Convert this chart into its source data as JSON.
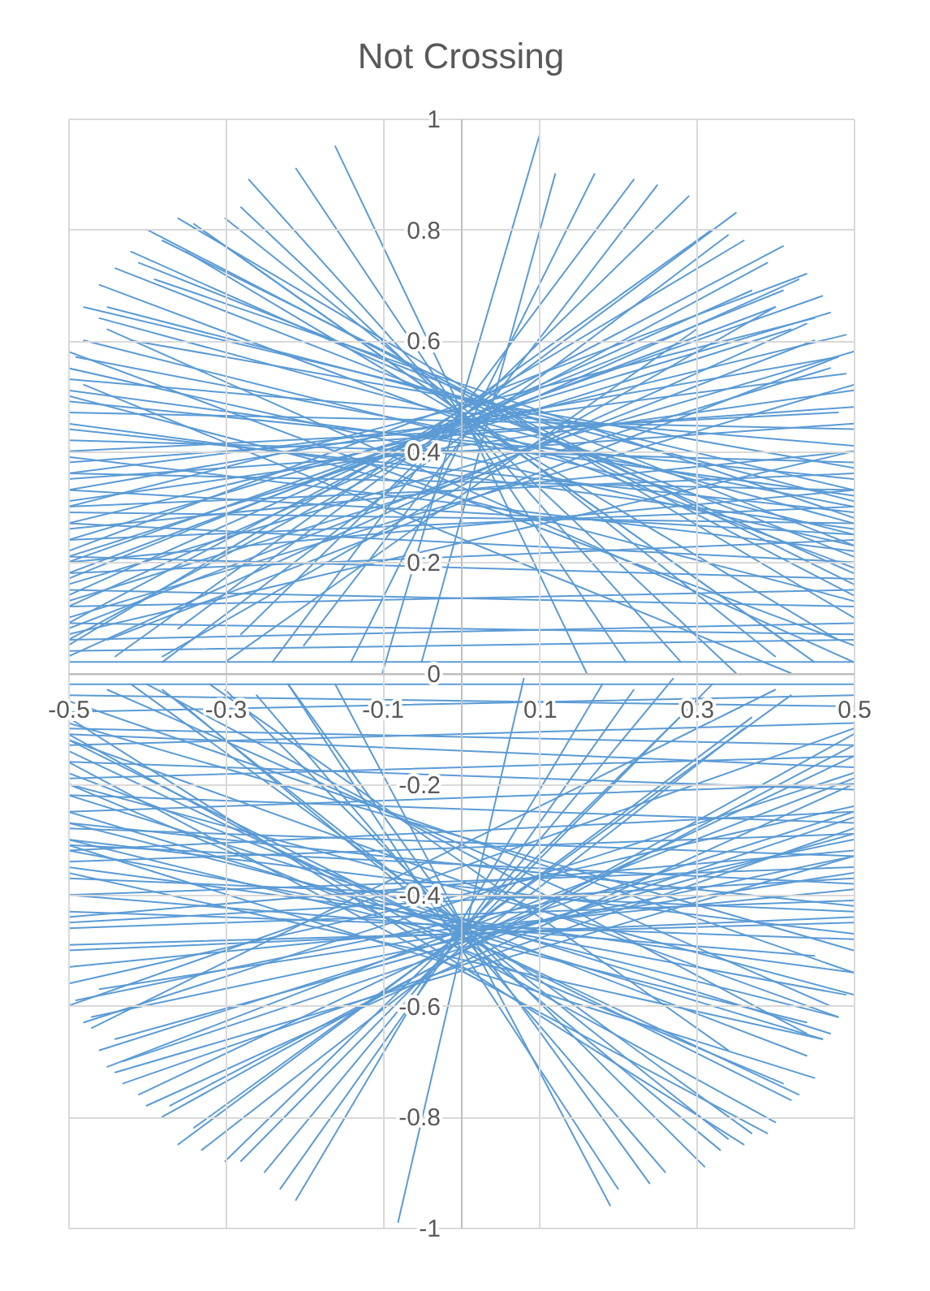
{
  "chart_data": {
    "type": "line",
    "title": "Not Crossing",
    "series": [
      {
        "color": "#5b9bd5",
        "x": [
          -0.16,
          0.16
        ],
        "values": [
          0.95,
          0
        ]
      },
      {
        "color": "#5b9bd5",
        "x": [
          -0.21,
          0.21
        ],
        "values": [
          0.91,
          0.02
        ]
      },
      {
        "color": "#5b9bd5",
        "x": [
          -0.27,
          0.28
        ],
        "values": [
          0.89,
          0.02
        ]
      },
      {
        "color": "#5b9bd5",
        "x": [
          -0.28,
          0.35
        ],
        "values": [
          0.84,
          0
        ]
      },
      {
        "color": "#5b9bd5",
        "x": [
          -0.34,
          0.42
        ],
        "values": [
          0.81,
          0.05
        ]
      },
      {
        "color": "#5b9bd5",
        "x": [
          -0.36,
          0.5
        ],
        "values": [
          0.82,
          0.1
        ]
      },
      {
        "color": "#5b9bd5",
        "x": [
          -0.4,
          0.5
        ],
        "values": [
          0.8,
          0.14
        ]
      },
      {
        "color": "#5b9bd5",
        "x": [
          -0.42,
          0.5
        ],
        "values": [
          0.76,
          0.18
        ]
      },
      {
        "color": "#5b9bd5",
        "x": [
          -0.44,
          0.5
        ],
        "values": [
          0.73,
          0.21
        ]
      },
      {
        "color": "#5b9bd5",
        "x": [
          -0.46,
          0.5
        ],
        "values": [
          0.7,
          0.19
        ]
      },
      {
        "color": "#5b9bd5",
        "x": [
          -0.46,
          0.5
        ],
        "values": [
          0.64,
          0.27
        ]
      },
      {
        "color": "#5b9bd5",
        "x": [
          -0.49,
          0.5
        ],
        "values": [
          0.57,
          0.3
        ]
      },
      {
        "color": "#5b9bd5",
        "x": [
          0.1,
          -0.1
        ],
        "values": [
          0.97,
          0
        ]
      },
      {
        "color": "#5b9bd5",
        "x": [
          0.17,
          -0.14
        ],
        "values": [
          0.9,
          0.02
        ]
      },
      {
        "color": "#5b9bd5",
        "x": [
          0.22,
          -0.24
        ],
        "values": [
          0.89,
          0.02
        ]
      },
      {
        "color": "#5b9bd5",
        "x": [
          0.25,
          -0.2
        ],
        "values": [
          0.88,
          0.05
        ]
      },
      {
        "color": "#5b9bd5",
        "x": [
          0.29,
          -0.28
        ],
        "values": [
          0.86,
          0.07
        ]
      },
      {
        "color": "#5b9bd5",
        "x": [
          0.35,
          -0.36
        ],
        "values": [
          0.83,
          0.08
        ]
      },
      {
        "color": "#5b9bd5",
        "x": [
          0.34,
          -0.38
        ],
        "values": [
          0.79,
          0.02
        ]
      },
      {
        "color": "#5b9bd5",
        "x": [
          0.36,
          -0.5
        ],
        "values": [
          0.78,
          0.05
        ]
      },
      {
        "color": "#5b9bd5",
        "x": [
          0.41,
          -0.5
        ],
        "values": [
          0.77,
          0.09
        ]
      },
      {
        "color": "#5b9bd5",
        "x": [
          0.37,
          -0.5
        ],
        "values": [
          0.69,
          0.14
        ]
      },
      {
        "color": "#5b9bd5",
        "x": [
          0.41,
          -0.5
        ],
        "values": [
          0.69,
          0.17
        ]
      },
      {
        "color": "#5b9bd5",
        "x": [
          0.46,
          -0.5
        ],
        "values": [
          0.68,
          0.2
        ]
      },
      {
        "color": "#5b9bd5",
        "x": [
          0.47,
          -0.5
        ],
        "values": [
          0.65,
          0.24
        ]
      },
      {
        "color": "#5b9bd5",
        "x": [
          0.49,
          -0.5
        ],
        "values": [
          0.61,
          0.27
        ]
      },
      {
        "color": "#5b9bd5",
        "x": [
          0.5,
          -0.5
        ],
        "values": [
          0.51,
          0.31
        ]
      },
      {
        "color": "#5b9bd5",
        "x": [
          0.48,
          -0.5
        ],
        "values": [
          0.47,
          0.4
        ]
      },
      {
        "color": "#5b9bd5",
        "x": [
          -0.5,
          0.5
        ],
        "values": [
          0.53,
          0.41
        ]
      },
      {
        "color": "#5b9bd5",
        "x": [
          -0.5,
          0.5
        ],
        "values": [
          0.49,
          0.35
        ]
      },
      {
        "color": "#5b9bd5",
        "x": [
          -0.5,
          0.5
        ],
        "values": [
          0.47,
          0.44
        ]
      },
      {
        "color": "#5b9bd5",
        "x": [
          -0.5,
          0.5
        ],
        "values": [
          0.44,
          0.29
        ]
      },
      {
        "color": "#5b9bd5",
        "x": [
          -0.5,
          0.5
        ],
        "values": [
          0.42,
          0.38
        ]
      },
      {
        "color": "#5b9bd5",
        "x": [
          -0.5,
          0.5
        ],
        "values": [
          0.39,
          0.22
        ]
      },
      {
        "color": "#5b9bd5",
        "x": [
          -0.5,
          0.5
        ],
        "values": [
          0.36,
          0.33
        ]
      },
      {
        "color": "#5b9bd5",
        "x": [
          -0.5,
          0.5
        ],
        "values": [
          0.33,
          0.25
        ]
      },
      {
        "color": "#5b9bd5",
        "x": [
          -0.5,
          0.5
        ],
        "values": [
          0.3,
          0.36
        ]
      },
      {
        "color": "#5b9bd5",
        "x": [
          -0.5,
          0.5
        ],
        "values": [
          0.27,
          0.2
        ]
      },
      {
        "color": "#5b9bd5",
        "x": [
          -0.5,
          0.5
        ],
        "values": [
          0.24,
          0.3
        ]
      },
      {
        "color": "#5b9bd5",
        "x": [
          -0.5,
          0.5
        ],
        "values": [
          0.21,
          0.17
        ]
      },
      {
        "color": "#5b9bd5",
        "x": [
          -0.5,
          0.5
        ],
        "values": [
          0.18,
          0.24
        ]
      },
      {
        "color": "#5b9bd5",
        "x": [
          -0.5,
          0.5
        ],
        "values": [
          0.15,
          0.12
        ]
      },
      {
        "color": "#5b9bd5",
        "x": [
          -0.5,
          0.5
        ],
        "values": [
          0.12,
          0.15
        ]
      },
      {
        "color": "#5b9bd5",
        "x": [
          -0.5,
          0.5
        ],
        "values": [
          0.09,
          0.07
        ]
      },
      {
        "color": "#5b9bd5",
        "x": [
          -0.5,
          0.5
        ],
        "values": [
          0.06,
          0.09
        ]
      },
      {
        "color": "#5b9bd5",
        "x": [
          -0.5,
          0.5
        ],
        "values": [
          0.04,
          0.06
        ]
      },
      {
        "color": "#5b9bd5",
        "x": [
          -0.5,
          0.5
        ],
        "values": [
          0.02,
          0.02
        ]
      },
      {
        "color": "#5b9bd5",
        "x": [
          -0.5,
          0.44
        ],
        "values": [
          0.03,
          0.63
        ]
      },
      {
        "color": "#5b9bd5",
        "x": [
          -0.45,
          0.48
        ],
        "values": [
          0.06,
          0.57
        ]
      },
      {
        "color": "#5b9bd5",
        "x": [
          -0.38,
          0.4
        ],
        "values": [
          0.03,
          0.66
        ]
      },
      {
        "color": "#5b9bd5",
        "x": [
          -0.5,
          0.5
        ],
        "values": [
          0.1,
          0.52
        ]
      },
      {
        "color": "#5b9bd5",
        "x": [
          -0.5,
          0.5
        ],
        "values": [
          0.16,
          0.58
        ]
      },
      {
        "color": "#5b9bd5",
        "x": [
          -0.5,
          0.45
        ],
        "values": [
          0.08,
          0.6
        ]
      },
      {
        "color": "#5b9bd5",
        "x": [
          -0.3,
          0.3
        ],
        "values": [
          0.02,
          0.62
        ]
      },
      {
        "color": "#5b9bd5",
        "x": [
          -0.5,
          0.5
        ],
        "values": [
          0.58,
          0.05
        ]
      },
      {
        "color": "#5b9bd5",
        "x": [
          -0.48,
          0.42
        ],
        "values": [
          0.52,
          0
        ]
      },
      {
        "color": "#5b9bd5",
        "x": [
          -0.5,
          0.5
        ],
        "values": [
          0.5,
          0.13
        ]
      },
      {
        "color": "#5b9bd5",
        "x": [
          -0.45,
          0.5
        ],
        "values": [
          0.62,
          0.02
        ]
      },
      {
        "color": "#5b9bd5",
        "x": [
          -0.5,
          0.5
        ],
        "values": [
          0.55,
          0.23
        ]
      },
      {
        "color": "#5b9bd5",
        "x": [
          -0.05,
          0.12
        ],
        "values": [
          0.02,
          0.9
        ]
      },
      {
        "color": "#5b9bd5",
        "x": [
          -0.5,
          0.5
        ],
        "values": [
          0.45,
          0.26
        ]
      },
      {
        "color": "#5b9bd5",
        "x": [
          -0.5,
          0.5
        ],
        "values": [
          0.35,
          0.45
        ]
      },
      {
        "color": "#5b9bd5",
        "x": [
          -0.5,
          0.5
        ],
        "values": [
          0.26,
          0.4
        ]
      },
      {
        "color": "#5b9bd5",
        "x": [
          -0.5,
          0.5
        ],
        "values": [
          0.2,
          0.33
        ]
      },
      {
        "color": "#5b9bd5",
        "x": [
          -0.42,
          0.5
        ],
        "values": [
          0.6,
          0.37
        ]
      },
      {
        "color": "#5b9bd5",
        "x": [
          -0.5,
          0.47
        ],
        "values": [
          0.13,
          0.55
        ]
      },
      {
        "color": "#5b9bd5",
        "x": [
          -0.48,
          0.5
        ],
        "values": [
          0.66,
          0.33
        ]
      },
      {
        "color": "#5b9bd5",
        "x": [
          0.44,
          -0.5
        ],
        "values": [
          0.72,
          0.22
        ]
      },
      {
        "color": "#5b9bd5",
        "x": [
          -0.38,
          0.5
        ],
        "values": [
          0.78,
          0.16
        ]
      },
      {
        "color": "#5b9bd5",
        "x": [
          -0.33,
          0.45
        ],
        "values": [
          0.8,
          0.02
        ]
      },
      {
        "color": "#5b9bd5",
        "x": [
          -0.41,
          0.5
        ],
        "values": [
          0.74,
          0.23
        ]
      },
      {
        "color": "#5b9bd5",
        "x": [
          -0.45,
          0.5
        ],
        "values": [
          0.66,
          0.31
        ]
      },
      {
        "color": "#5b9bd5",
        "x": [
          -0.48,
          0.5
        ],
        "values": [
          0.6,
          0.25
        ]
      },
      {
        "color": "#5b9bd5",
        "x": [
          -0.39,
          0.5
        ],
        "values": [
          0.71,
          0.28
        ]
      },
      {
        "color": "#5b9bd5",
        "x": [
          -0.35,
          0.48
        ],
        "values": [
          0.76,
          0.06
        ]
      },
      {
        "color": "#5b9bd5",
        "x": [
          -0.3,
          0.4
        ],
        "values": [
          0.82,
          0.03
        ]
      },
      {
        "color": "#5b9bd5",
        "x": [
          0.43,
          -0.5
        ],
        "values": [
          0.71,
          0.12
        ]
      },
      {
        "color": "#5b9bd5",
        "x": [
          0.39,
          -0.5
        ],
        "values": [
          0.74,
          0.06
        ]
      },
      {
        "color": "#5b9bd5",
        "x": [
          0.45,
          -0.5
        ],
        "values": [
          0.64,
          0.3
        ]
      },
      {
        "color": "#5b9bd5",
        "x": [
          0.42,
          -0.5
        ],
        "values": [
          0.62,
          0.21
        ]
      },
      {
        "color": "#5b9bd5",
        "x": [
          0.48,
          -0.5
        ],
        "values": [
          0.57,
          0.33
        ]
      },
      {
        "color": "#5b9bd5",
        "x": [
          0.32,
          -0.44
        ],
        "values": [
          0.8,
          0.03
        ]
      },
      {
        "color": "#5b9bd5",
        "x": [
          0.49,
          -0.5
        ],
        "values": [
          0.54,
          0.36
        ]
      },
      {
        "color": "#5b9bd5",
        "x": [
          0.4,
          -0.5
        ],
        "values": [
          0.66,
          0.18
        ]
      },
      {
        "color": "#5b9bd5",
        "x": [
          -0.5,
          0.5
        ],
        "values": [
          0.51,
          0.32
        ]
      },
      {
        "color": "#5b9bd5",
        "x": [
          -0.5,
          0.5
        ],
        "values": [
          0.38,
          0.48
        ]
      },
      {
        "color": "#5b9bd5",
        "x": [
          -0.5,
          0.5
        ],
        "values": [
          0.29,
          0.27
        ]
      },
      {
        "color": "#5b9bd5",
        "x": [
          -0.5,
          0.5
        ],
        "values": [
          0.07,
          0.4
        ]
      },
      {
        "color": "#5b9bd5",
        "x": [
          -0.08,
          0.08
        ],
        "values": [
          -0.99,
          -0.01
        ]
      },
      {
        "color": "#5b9bd5",
        "x": [
          -0.21,
          0.18
        ],
        "values": [
          -0.95,
          -0.02
        ]
      },
      {
        "color": "#5b9bd5",
        "x": [
          -0.23,
          0.22
        ],
        "values": [
          -0.93,
          -0.03
        ]
      },
      {
        "color": "#5b9bd5",
        "x": [
          -0.3,
          0.3
        ],
        "values": [
          -0.88,
          -0.05
        ]
      },
      {
        "color": "#5b9bd5",
        "x": [
          -0.36,
          0.37
        ],
        "values": [
          -0.85,
          -0.08
        ]
      },
      {
        "color": "#5b9bd5",
        "x": [
          -0.38,
          0.5
        ],
        "values": [
          -0.8,
          -0.11
        ]
      },
      {
        "color": "#5b9bd5",
        "x": [
          -0.41,
          0.5
        ],
        "values": [
          -0.76,
          -0.15
        ]
      },
      {
        "color": "#5b9bd5",
        "x": [
          -0.45,
          0.5
        ],
        "values": [
          -0.71,
          -0.19
        ]
      },
      {
        "color": "#5b9bd5",
        "x": [
          -0.46,
          0.5
        ],
        "values": [
          -0.68,
          -0.25
        ]
      },
      {
        "color": "#5b9bd5",
        "x": [
          -0.49,
          0.5
        ],
        "values": [
          -0.59,
          -0.3
        ]
      },
      {
        "color": "#5b9bd5",
        "x": [
          0.19,
          -0.16
        ],
        "values": [
          -0.96,
          -0.02
        ]
      },
      {
        "color": "#5b9bd5",
        "x": [
          0.2,
          -0.22
        ],
        "values": [
          -0.93,
          -0.02
        ]
      },
      {
        "color": "#5b9bd5",
        "x": [
          0.31,
          -0.3
        ],
        "values": [
          -0.89,
          -0.03
        ]
      },
      {
        "color": "#5b9bd5",
        "x": [
          0.33,
          -0.36
        ],
        "values": [
          -0.86,
          -0.05
        ]
      },
      {
        "color": "#5b9bd5",
        "x": [
          0.36,
          -0.5
        ],
        "values": [
          -0.85,
          -0.08
        ]
      },
      {
        "color": "#5b9bd5",
        "x": [
          0.4,
          -0.5
        ],
        "values": [
          -0.81,
          -0.11
        ]
      },
      {
        "color": "#5b9bd5",
        "x": [
          0.43,
          -0.5
        ],
        "values": [
          -0.76,
          -0.14
        ]
      },
      {
        "color": "#5b9bd5",
        "x": [
          0.44,
          -0.5
        ],
        "values": [
          -0.69,
          -0.18
        ]
      },
      {
        "color": "#5b9bd5",
        "x": [
          0.47,
          -0.5
        ],
        "values": [
          -0.65,
          -0.22
        ]
      },
      {
        "color": "#5b9bd5",
        "x": [
          0.48,
          -0.5
        ],
        "values": [
          -0.62,
          -0.27
        ]
      },
      {
        "color": "#5b9bd5",
        "x": [
          0.5,
          -0.5
        ],
        "values": [
          -0.54,
          -0.35
        ]
      },
      {
        "color": "#5b9bd5",
        "x": [
          0.45,
          -0.5
        ],
        "values": [
          -0.51,
          -0.4
        ]
      },
      {
        "color": "#5b9bd5",
        "x": [
          -0.5,
          0.5
        ],
        "values": [
          -0.02,
          -0.02
        ]
      },
      {
        "color": "#5b9bd5",
        "x": [
          -0.5,
          0.5
        ],
        "values": [
          -0.04,
          -0.06
        ]
      },
      {
        "color": "#5b9bd5",
        "x": [
          -0.5,
          0.5
        ],
        "values": [
          -0.07,
          -0.04
        ]
      },
      {
        "color": "#5b9bd5",
        "x": [
          -0.5,
          0.5
        ],
        "values": [
          -0.1,
          -0.13
        ]
      },
      {
        "color": "#5b9bd5",
        "x": [
          -0.5,
          0.5
        ],
        "values": [
          -0.13,
          -0.09
        ]
      },
      {
        "color": "#5b9bd5",
        "x": [
          -0.5,
          0.5
        ],
        "values": [
          -0.16,
          -0.21
        ]
      },
      {
        "color": "#5b9bd5",
        "x": [
          -0.5,
          0.5
        ],
        "values": [
          -0.19,
          -0.15
        ]
      },
      {
        "color": "#5b9bd5",
        "x": [
          -0.5,
          0.5
        ],
        "values": [
          -0.22,
          -0.27
        ]
      },
      {
        "color": "#5b9bd5",
        "x": [
          -0.5,
          0.5
        ],
        "values": [
          -0.25,
          -0.2
        ]
      },
      {
        "color": "#5b9bd5",
        "x": [
          -0.5,
          0.5
        ],
        "values": [
          -0.28,
          -0.33
        ]
      },
      {
        "color": "#5b9bd5",
        "x": [
          -0.5,
          0.5
        ],
        "values": [
          -0.31,
          -0.38
        ]
      },
      {
        "color": "#5b9bd5",
        "x": [
          -0.5,
          0.5
        ],
        "values": [
          -0.34,
          -0.29
        ]
      },
      {
        "color": "#5b9bd5",
        "x": [
          -0.5,
          0.5
        ],
        "values": [
          -0.37,
          -0.43
        ]
      },
      {
        "color": "#5b9bd5",
        "x": [
          -0.5,
          0.5
        ],
        "values": [
          -0.4,
          -0.35
        ]
      },
      {
        "color": "#5b9bd5",
        "x": [
          -0.5,
          0.5
        ],
        "values": [
          -0.43,
          -0.48
        ]
      },
      {
        "color": "#5b9bd5",
        "x": [
          -0.5,
          0.5
        ],
        "values": [
          -0.46,
          -0.41
        ]
      },
      {
        "color": "#5b9bd5",
        "x": [
          -0.5,
          0.5
        ],
        "values": [
          -0.49,
          -0.45
        ]
      },
      {
        "color": "#5b9bd5",
        "x": [
          -0.5,
          0.5
        ],
        "values": [
          -0.53,
          -0.39
        ]
      },
      {
        "color": "#5b9bd5",
        "x": [
          -0.5,
          0.5
        ],
        "values": [
          -0.56,
          -0.24
        ]
      },
      {
        "color": "#5b9bd5",
        "x": [
          -0.48,
          0.5
        ],
        "values": [
          -0.63,
          -0.18
        ]
      },
      {
        "color": "#5b9bd5",
        "x": [
          -0.5,
          0.5
        ],
        "values": [
          -0.05,
          -0.54
        ]
      },
      {
        "color": "#5b9bd5",
        "x": [
          -0.45,
          0.47
        ],
        "values": [
          -0.03,
          -0.6
        ]
      },
      {
        "color": "#5b9bd5",
        "x": [
          -0.5,
          0.48
        ],
        "values": [
          -0.12,
          -0.62
        ]
      },
      {
        "color": "#5b9bd5",
        "x": [
          -0.4,
          0.44
        ],
        "values": [
          -0.02,
          -0.65
        ]
      },
      {
        "color": "#5b9bd5",
        "x": [
          -0.5,
          0.5
        ],
        "values": [
          -0.2,
          -0.58
        ]
      },
      {
        "color": "#5b9bd5",
        "x": [
          -0.47,
          0.4
        ],
        "values": [
          -0.64,
          -0.03
        ]
      },
      {
        "color": "#5b9bd5",
        "x": [
          -0.5,
          0.5
        ],
        "values": [
          -0.6,
          -0.1
        ]
      },
      {
        "color": "#5b9bd5",
        "x": [
          -0.32,
          0.34
        ],
        "values": [
          -0.02,
          -0.68
        ]
      },
      {
        "color": "#5b9bd5",
        "x": [
          -0.43,
          0.5
        ],
        "values": [
          -0.74,
          -0.28
        ]
      },
      {
        "color": "#5b9bd5",
        "x": [
          0.39,
          -0.5
        ],
        "values": [
          -0.83,
          -0.16
        ]
      },
      {
        "color": "#5b9bd5",
        "x": [
          -0.33,
          0.36
        ],
        "values": [
          -0.86,
          -0.1
        ]
      },
      {
        "color": "#5b9bd5",
        "x": [
          0.26,
          -0.26
        ],
        "values": [
          -0.9,
          -0.04
        ]
      },
      {
        "color": "#5b9bd5",
        "x": [
          -0.5,
          0.5
        ],
        "values": [
          -0.3,
          -0.47
        ]
      },
      {
        "color": "#5b9bd5",
        "x": [
          -0.5,
          0.5
        ],
        "values": [
          -0.44,
          -0.32
        ]
      },
      {
        "color": "#5b9bd5",
        "x": [
          -0.5,
          0.5
        ],
        "values": [
          -0.27,
          -0.42
        ]
      },
      {
        "color": "#5b9bd5",
        "x": [
          -0.46,
          0.5
        ],
        "values": [
          -0.57,
          -0.36
        ]
      },
      {
        "color": "#5b9bd5",
        "x": [
          -0.5,
          0.46
        ],
        "values": [
          -0.36,
          -0.66
        ]
      },
      {
        "color": "#5b9bd5",
        "x": [
          0.45,
          -0.5
        ],
        "values": [
          -0.73,
          -0.31
        ]
      },
      {
        "color": "#5b9bd5",
        "x": [
          -0.44,
          0.5
        ],
        "values": [
          -0.72,
          -0.33
        ]
      },
      {
        "color": "#5b9bd5",
        "x": [
          -0.5,
          0.5
        ],
        "values": [
          -0.09,
          -0.5
        ]
      },
      {
        "color": "#5b9bd5",
        "x": [
          -0.4,
          0.5
        ],
        "values": [
          -0.78,
          -0.2
        ]
      },
      {
        "color": "#5b9bd5",
        "x": [
          -0.34,
          0.42
        ],
        "values": [
          -0.82,
          -0.04
        ]
      },
      {
        "color": "#5b9bd5",
        "x": [
          -0.43,
          0.5
        ],
        "values": [
          -0.7,
          -0.26
        ]
      },
      {
        "color": "#5b9bd5",
        "x": [
          -0.47,
          0.5
        ],
        "values": [
          -0.62,
          -0.33
        ]
      },
      {
        "color": "#5b9bd5",
        "x": [
          -0.28,
          0.32
        ],
        "values": [
          -0.88,
          -0.02
        ]
      },
      {
        "color": "#5b9bd5",
        "x": [
          -0.37,
          0.5
        ],
        "values": [
          -0.78,
          -0.13
        ]
      },
      {
        "color": "#5b9bd5",
        "x": [
          -0.25,
          0.27
        ],
        "values": [
          -0.9,
          -0.01
        ]
      },
      {
        "color": "#5b9bd5",
        "x": [
          -0.44,
          0.5
        ],
        "values": [
          -0.66,
          -0.29
        ]
      },
      {
        "color": "#5b9bd5",
        "x": [
          0.42,
          -0.5
        ],
        "values": [
          -0.77,
          -0.12
        ]
      },
      {
        "color": "#5b9bd5",
        "x": [
          0.46,
          -0.5
        ],
        "values": [
          -0.66,
          -0.25
        ]
      },
      {
        "color": "#5b9bd5",
        "x": [
          0.37,
          -0.42
        ],
        "values": [
          -0.83,
          -0.02
        ]
      },
      {
        "color": "#5b9bd5",
        "x": [
          0.49,
          -0.5
        ],
        "values": [
          -0.58,
          -0.32
        ]
      },
      {
        "color": "#5b9bd5",
        "x": [
          0.41,
          -0.5
        ],
        "values": [
          -0.74,
          -0.2
        ]
      },
      {
        "color": "#5b9bd5",
        "x": [
          0.24,
          -0.22
        ],
        "values": [
          -0.92,
          -0.02
        ]
      },
      {
        "color": "#5b9bd5",
        "x": [
          0.44,
          -0.5
        ],
        "values": [
          -0.63,
          -0.3
        ]
      },
      {
        "color": "#5b9bd5",
        "x": [
          0.34,
          -0.38
        ],
        "values": [
          -0.84,
          -0.03
        ]
      },
      {
        "color": "#5b9bd5",
        "x": [
          -0.5,
          0.5
        ],
        "values": [
          -0.11,
          -0.17
        ]
      },
      {
        "color": "#5b9bd5",
        "x": [
          -0.5,
          0.5
        ],
        "values": [
          -0.32,
          -0.25
        ]
      },
      {
        "color": "#5b9bd5",
        "x": [
          -0.5,
          0.5
        ],
        "values": [
          -0.45,
          -0.37
        ]
      },
      {
        "color": "#5b9bd5",
        "x": [
          -0.5,
          0.5
        ],
        "values": [
          -0.5,
          -0.44
        ]
      }
    ],
    "xlim": [
      -0.5,
      0.5
    ],
    "xticks": [
      -0.5,
      -0.3,
      -0.1,
      0.1,
      0.3,
      0.5
    ],
    "ylim": [
      -1,
      1
    ],
    "yticks": [
      -1,
      -0.8,
      -0.6,
      -0.4,
      -0.2,
      0,
      0.2,
      0.4,
      0.6,
      0.8,
      1
    ],
    "grid": true
  }
}
